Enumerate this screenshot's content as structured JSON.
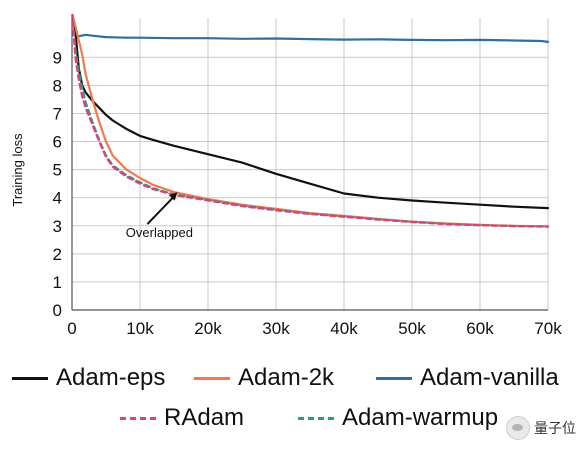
{
  "chart_data": {
    "type": "line",
    "title": "",
    "xlabel": "",
    "ylabel": "Training loss",
    "xlim": [
      0,
      70000
    ],
    "ylim": [
      0,
      10.4
    ],
    "xticks": [
      0,
      10000,
      20000,
      30000,
      40000,
      50000,
      60000,
      70000
    ],
    "xtick_labels": [
      "0",
      "10k",
      "20k",
      "30k",
      "40k",
      "50k",
      "60k",
      "70k"
    ],
    "yticks": [
      0,
      1,
      2,
      3,
      4,
      5,
      6,
      7,
      8,
      9
    ],
    "ytick_labels": [
      "0",
      "1",
      "2",
      "3",
      "4",
      "5",
      "6",
      "7",
      "8",
      "9"
    ],
    "grid": true,
    "legend_position": "bottom",
    "series": [
      {
        "name": "Adam-eps",
        "color": "#111111",
        "dash": "solid",
        "x": [
          0,
          500,
          1000,
          1500,
          2000,
          3000,
          4000,
          5000,
          6000,
          8000,
          10000,
          12000,
          15000,
          20000,
          25000,
          30000,
          35000,
          40000,
          45000,
          50000,
          55000,
          60000,
          65000,
          70000
        ],
        "y": [
          10.6,
          9.9,
          8.6,
          8.0,
          7.75,
          7.45,
          7.2,
          6.95,
          6.75,
          6.45,
          6.2,
          6.05,
          5.85,
          5.55,
          5.25,
          4.85,
          4.5,
          4.15,
          4.0,
          3.9,
          3.82,
          3.75,
          3.68,
          3.63
        ]
      },
      {
        "name": "Adam-2k",
        "color": "#f07a4c",
        "dash": "solid",
        "x": [
          0,
          500,
          1000,
          1500,
          2000,
          3000,
          4000,
          5000,
          6000,
          8000,
          10000,
          12000,
          15000,
          20000,
          25000,
          30000,
          35000,
          40000,
          45000,
          50000,
          55000,
          60000,
          65000,
          70000
        ],
        "y": [
          10.6,
          10.1,
          9.6,
          9.1,
          8.4,
          7.5,
          6.7,
          6.0,
          5.5,
          5.0,
          4.7,
          4.45,
          4.2,
          3.95,
          3.75,
          3.6,
          3.45,
          3.35,
          3.25,
          3.15,
          3.08,
          3.03,
          3.0,
          2.98
        ]
      },
      {
        "name": "Adam-vanilla",
        "color": "#2f6e9e",
        "dash": "solid",
        "x": [
          0,
          1000,
          2000,
          3000,
          5000,
          8000,
          10000,
          15000,
          20000,
          25000,
          30000,
          35000,
          40000,
          45000,
          50000,
          55000,
          60000,
          65000,
          69000,
          70000
        ],
        "y": [
          9.8,
          9.75,
          9.8,
          9.77,
          9.72,
          9.7,
          9.7,
          9.68,
          9.68,
          9.66,
          9.67,
          9.65,
          9.63,
          9.64,
          9.62,
          9.61,
          9.62,
          9.6,
          9.58,
          9.55
        ]
      },
      {
        "name": "RAdam",
        "color": "#e0407a",
        "dash": "dashed",
        "x": [
          0,
          500,
          1000,
          1500,
          2000,
          3000,
          4000,
          5000,
          6000,
          8000,
          10000,
          12000,
          15000,
          20000,
          25000,
          30000,
          35000,
          40000,
          45000,
          50000,
          55000,
          60000,
          65000,
          70000
        ],
        "y": [
          10.6,
          9.0,
          8.2,
          7.6,
          7.2,
          6.6,
          6.0,
          5.45,
          5.1,
          4.75,
          4.5,
          4.3,
          4.1,
          3.9,
          3.7,
          3.55,
          3.42,
          3.32,
          3.22,
          3.13,
          3.06,
          3.02,
          2.99,
          2.97
        ]
      },
      {
        "name": "Adam-warmup",
        "color": "#2a9d7c",
        "dash": "dashed",
        "x": [
          0,
          500,
          1000,
          1500,
          2000,
          3000,
          4000,
          5000,
          6000,
          8000,
          10000,
          12000,
          15000,
          20000,
          25000,
          30000,
          35000,
          40000,
          45000,
          50000,
          55000,
          60000,
          65000,
          70000
        ],
        "y": [
          10.6,
          9.3,
          8.5,
          7.9,
          7.4,
          6.7,
          6.05,
          5.5,
          5.15,
          4.8,
          4.55,
          4.33,
          4.12,
          3.92,
          3.72,
          3.57,
          3.43,
          3.33,
          3.23,
          3.14,
          3.07,
          3.02,
          2.99,
          2.97
        ]
      }
    ],
    "annotations": [
      {
        "text": "Overlapped",
        "x": 15500,
        "y": 4.2
      }
    ]
  },
  "watermark": {
    "text": "量子位",
    "icon": "wechat-account-icon"
  }
}
